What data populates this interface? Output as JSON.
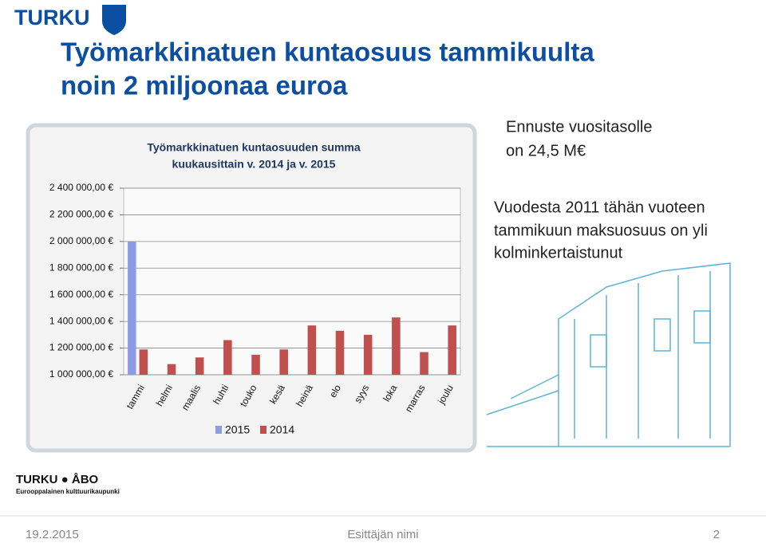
{
  "logo": "TURKU",
  "title_lines": [
    "Työmarkkinatuen kuntaosuus tammikuulta",
    "noin 2 miljoonaa euroa"
  ],
  "forecast_lines": [
    "Ennuste vuositasolle",
    "on 24,5 M€"
  ],
  "note_lines": [
    "Vuodesta 2011 tähän vuoteen",
    "tammikuun maksuosuus on yli",
    "kolminkertaistunut"
  ],
  "bottom_logo": {
    "name": "TURKU ● ÅBO",
    "tagline": "Eurooppalainen kulttuurikaupunki"
  },
  "footer": {
    "date": "19.2.2015",
    "presenter": "Esittäjän nimi",
    "page": "2"
  },
  "chart_data": {
    "type": "bar",
    "title_lines": [
      "Työmarkkinatuen kuntaosuuden summa",
      "kuukausittain v. 2014 ja v. 2015"
    ],
    "categories": [
      "tammi",
      "helmi",
      "maalis",
      "huhti",
      "touko",
      "kesä",
      "heinä",
      "elo",
      "syys",
      "loka",
      "marras",
      "joulu"
    ],
    "series": [
      {
        "name": "2015",
        "color": "#8e9ce6",
        "values": [
          2000000,
          null,
          null,
          null,
          null,
          null,
          null,
          null,
          null,
          null,
          null,
          null
        ]
      },
      {
        "name": "2014",
        "color": "#c0504d",
        "values": [
          1190000,
          1080000,
          1130000,
          1260000,
          1150000,
          1190000,
          1370000,
          1330000,
          1300000,
          1430000,
          1170000,
          1370000
        ]
      }
    ],
    "ylim": [
      1000000,
      2400000
    ],
    "yticks": [
      {
        "value": 1000000,
        "label": "1 000 000,00 €"
      },
      {
        "value": 1200000,
        "label": "1 200 000,00 €"
      },
      {
        "value": 1400000,
        "label": "1 400 000,00 €"
      },
      {
        "value": 1600000,
        "label": "1 600 000,00 €"
      },
      {
        "value": 1800000,
        "label": "1 800 000,00 €"
      },
      {
        "value": 2000000,
        "label": "2 000 000,00 €"
      },
      {
        "value": 2200000,
        "label": "2 200 000,00 €"
      },
      {
        "value": 2400000,
        "label": "2 400 000,00 €"
      }
    ],
    "grid": true,
    "legend": "bottom"
  }
}
